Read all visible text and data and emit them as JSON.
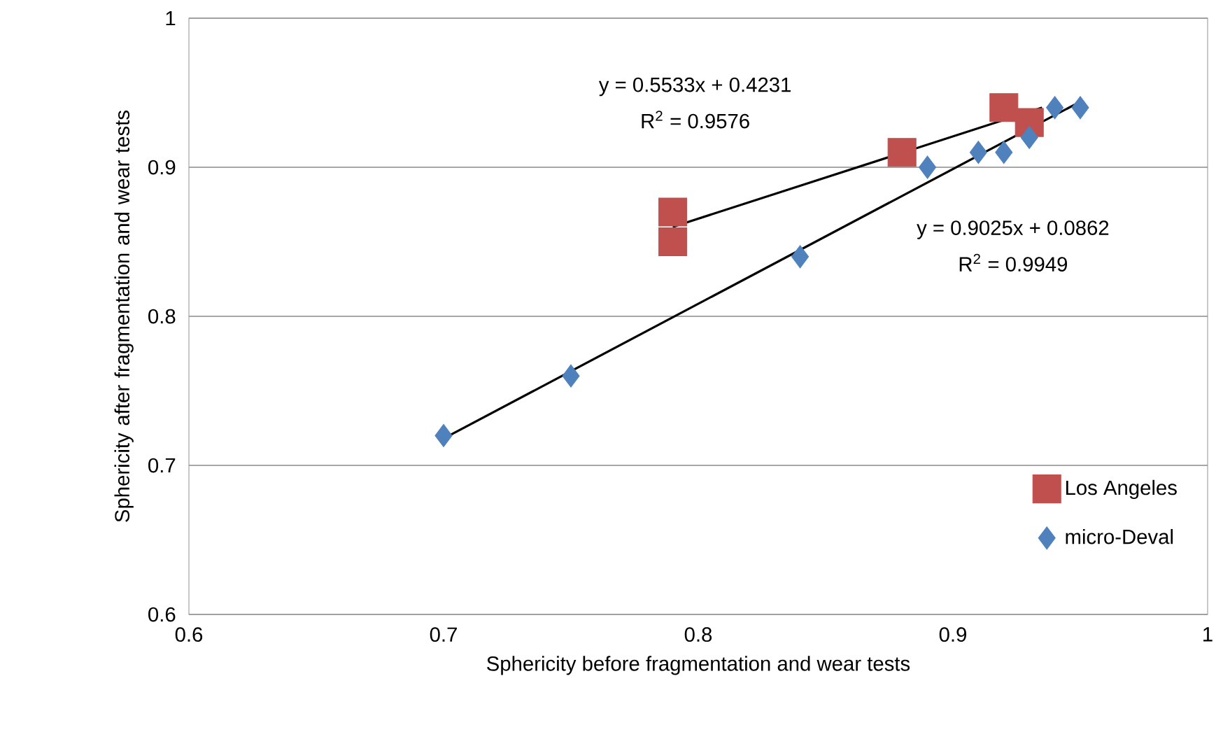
{
  "chart_data": {
    "type": "scatter",
    "xlabel": "Sphericity before fragmentation and wear tests",
    "ylabel": "Sphericity after fragmentation and wear tests",
    "xlim": [
      0.6,
      1
    ],
    "ylim": [
      0.6,
      1
    ],
    "xticks": [
      0.6,
      0.7,
      0.8,
      0.9,
      1
    ],
    "yticks": [
      0.6,
      0.7,
      0.8,
      0.9,
      1
    ],
    "grid": "y",
    "legend": "bottom right",
    "series": [
      {
        "name": "Los Angeles",
        "color": "#c0504d",
        "marker": "square",
        "x": [
          0.79,
          0.79,
          0.88,
          0.92,
          0.93
        ],
        "values": [
          0.85,
          0.87,
          0.91,
          0.94,
          0.93
        ]
      },
      {
        "name": "micro-Deval",
        "color": "#4f81bd",
        "marker": "diamond",
        "x": [
          0.7,
          0.75,
          0.84,
          0.89,
          0.91,
          0.92,
          0.93,
          0.94,
          0.95
        ],
        "values": [
          0.72,
          0.76,
          0.84,
          0.9,
          0.91,
          0.91,
          0.92,
          0.94,
          0.94
        ]
      },
      {
        "type": "line",
        "color": "#000000",
        "marker": "none",
        "x": [
          0.79,
          0.935
        ],
        "values": [
          0.86,
          0.94
        ]
      },
      {
        "type": "line",
        "color": "#000000",
        "marker": "none",
        "x": [
          0.7,
          0.95
        ],
        "values": [
          0.718,
          0.944
        ]
      }
    ],
    "annotations": [
      "y = 0.5533x + 0.4231",
      "R$^{2}$ = 0.9576",
      "y = 0.9025x + 0.0862",
      "R$^{2}$ = 0.9949"
    ]
  }
}
